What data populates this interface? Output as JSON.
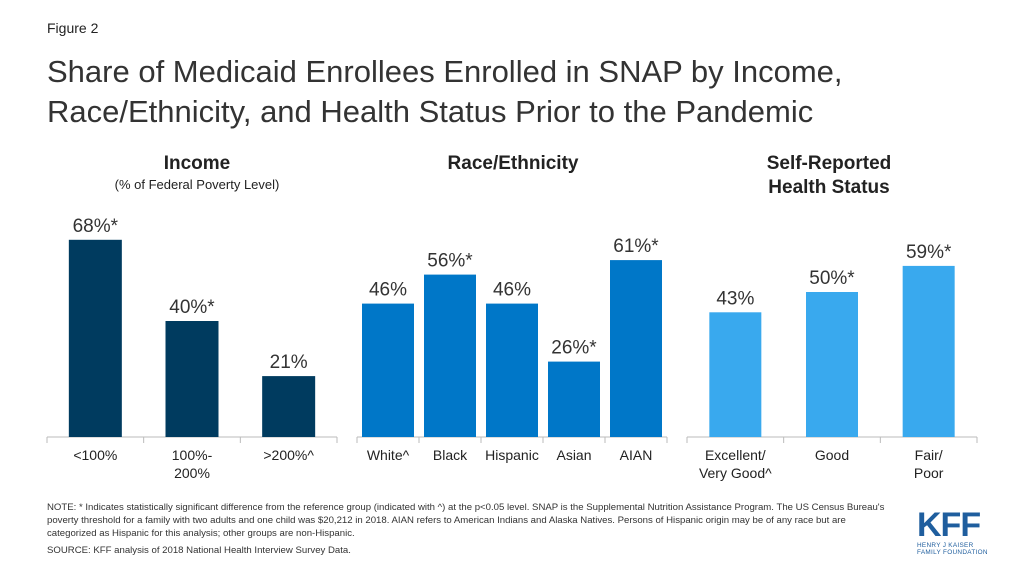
{
  "figure_label": "Figure 2",
  "title": "Share of Medicaid Enrollees Enrolled in SNAP by Income, Race/Ethnicity, and Health Status Prior to the Pandemic",
  "panels": {
    "income": {
      "title": "Income",
      "subtitle": "(% of Federal Poverty Level)"
    },
    "race": {
      "title": "Race/Ethnicity"
    },
    "health": {
      "title_line1": "Self-Reported",
      "title_line2": "Health Status"
    }
  },
  "colors": {
    "income": "#003b5f",
    "race": "#0077c8",
    "health": "#39a9ee",
    "axis": "#bbbbbb"
  },
  "chart_data": [
    {
      "type": "bar",
      "title": "Income",
      "subtitle": "(% of Federal Poverty Level)",
      "categories": [
        "<100%",
        "100%-\n200%",
        ">200%^"
      ],
      "values": [
        68,
        40,
        21
      ],
      "labels": [
        "68%*",
        "40%*",
        "21%"
      ],
      "ylim": [
        0,
        70
      ]
    },
    {
      "type": "bar",
      "title": "Race/Ethnicity",
      "categories": [
        "White^",
        "Black",
        "Hispanic",
        "Asian",
        "AIAN"
      ],
      "values": [
        46,
        56,
        46,
        26,
        61
      ],
      "labels": [
        "46%",
        "56%*",
        "46%",
        "26%*",
        "61%*"
      ],
      "ylim": [
        0,
        70
      ]
    },
    {
      "type": "bar",
      "title": "Self-Reported Health Status",
      "categories": [
        "Excellent/\nVery Good^",
        "Good",
        "Fair/\nPoor"
      ],
      "values": [
        43,
        50,
        59
      ],
      "labels": [
        "43%",
        "50%*",
        "59%*"
      ],
      "ylim": [
        0,
        70
      ]
    }
  ],
  "note": "NOTE: * Indicates statistically significant difference from the reference group (indicated with ^) at the p<0.05 level. SNAP is the Supplemental Nutrition Assistance Program. The US Census Bureau's poverty threshold for a family with two adults and one child was $20,212 in 2018. AIAN refers to American Indians and Alaska Natives. Persons of Hispanic origin may be of any race but are categorized as Hispanic for this analysis; other groups are non-Hispanic.",
  "source": "SOURCE: KFF analysis of 2018 National Health Interview Survey Data.",
  "logo": {
    "text": "KFF",
    "sub1": "HENRY J KAISER",
    "sub2": "FAMILY FOUNDATION"
  }
}
